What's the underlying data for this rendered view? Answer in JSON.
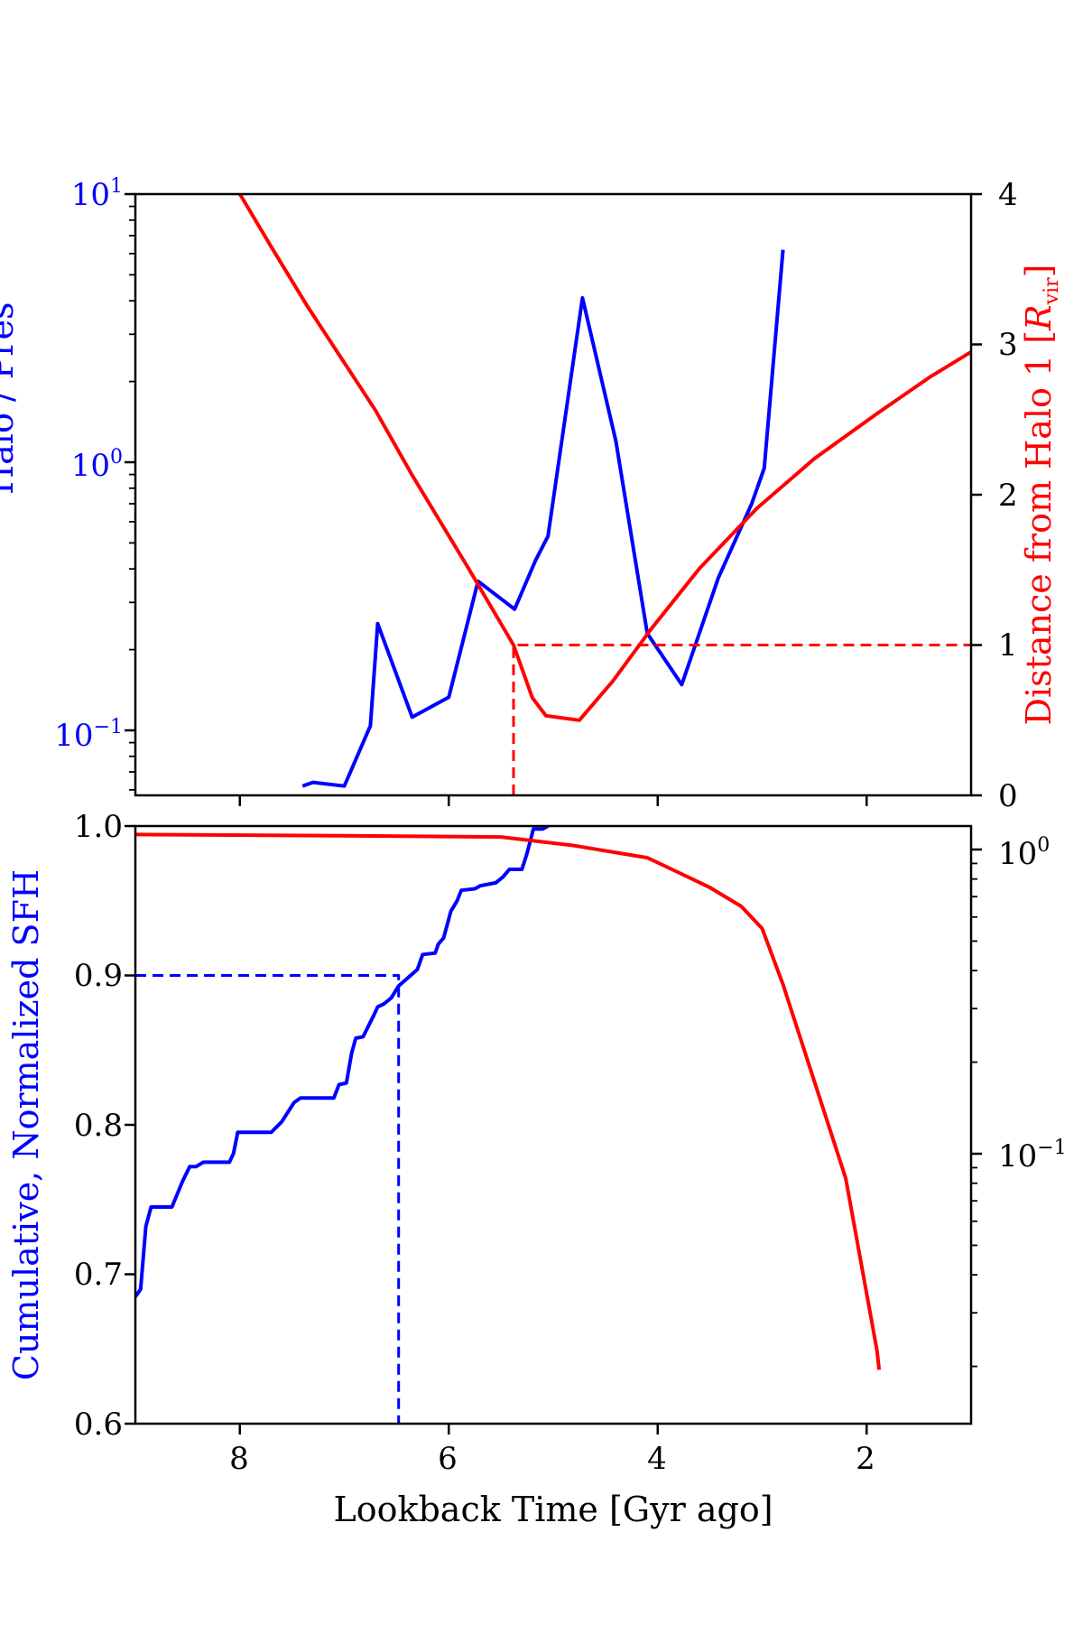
{
  "chart_data": [
    {
      "type": "line",
      "panel": "top",
      "left_axis": {
        "label_visible": "Halo / Pres",
        "scale": "log",
        "ticks": [
          "10",
          "10",
          "10"
        ],
        "tick_exponents": [
          "1",
          "0",
          "−1"
        ],
        "tick_values": [
          10,
          1,
          0.1
        ],
        "color": "#0000ff"
      },
      "right_axis": {
        "label_prefix": "Distance from Halo 1 [",
        "label_var": "R",
        "label_sub": "vir",
        "label_suffix": "]",
        "range": [
          0,
          4
        ],
        "ticks": [
          "0",
          "1",
          "2",
          "3",
          "4"
        ],
        "color": "#ff0000"
      },
      "x": {
        "range": [
          9,
          1
        ],
        "ticks": [
          "8",
          "6",
          "4",
          "2"
        ]
      },
      "series": [
        {
          "color": "#0000ff",
          "axis": "left",
          "points": [
            [
              7.4,
              0.062
            ],
            [
              7.3,
              0.064
            ],
            [
              7.0,
              0.062
            ],
            [
              6.75,
              0.104
            ],
            [
              6.68,
              0.25
            ],
            [
              6.35,
              0.112
            ],
            [
              6.0,
              0.133
            ],
            [
              5.72,
              0.36
            ],
            [
              5.37,
              0.283
            ],
            [
              5.17,
              0.43
            ],
            [
              5.05,
              0.53
            ],
            [
              4.72,
              4.1
            ],
            [
              4.4,
              1.2
            ],
            [
              4.1,
              0.23
            ],
            [
              3.77,
              0.148
            ],
            [
              3.42,
              0.37
            ],
            [
              3.1,
              0.7
            ],
            [
              2.98,
              0.95
            ],
            [
              2.8,
              6.2
            ]
          ]
        },
        {
          "color": "#ff0000",
          "axis": "right",
          "points": [
            [
              8.0,
              4.0
            ],
            [
              7.7,
              3.65
            ],
            [
              7.35,
              3.25
            ],
            [
              6.7,
              2.56
            ],
            [
              6.35,
              2.13
            ],
            [
              5.82,
              1.52
            ],
            [
              5.38,
              1.0
            ],
            [
              5.2,
              0.65
            ],
            [
              5.07,
              0.53
            ],
            [
              4.75,
              0.5
            ],
            [
              4.43,
              0.76
            ],
            [
              4.07,
              1.1
            ],
            [
              3.6,
              1.51
            ],
            [
              3.05,
              1.91
            ],
            [
              2.5,
              2.24
            ],
            [
              1.9,
              2.54
            ],
            [
              1.4,
              2.78
            ],
            [
              1.0,
              2.95
            ]
          ]
        },
        {
          "color": "#ff0000",
          "style": "dashed",
          "axis": "right",
          "points": [
            [
              5.38,
              0.0
            ],
            [
              5.38,
              1.0
            ],
            [
              1.0,
              1.0
            ]
          ]
        }
      ]
    },
    {
      "type": "line",
      "panel": "bottom",
      "left_axis": {
        "label": "Cumulative, Normalized SFH",
        "range": [
          0.6,
          1.0
        ],
        "ticks": [
          "0.6",
          "0.7",
          "0.8",
          "0.9",
          "1.0"
        ],
        "color": "#0000ff"
      },
      "right_axis": {
        "scale": "log",
        "ticks": [
          "10",
          "10"
        ],
        "tick_exponents": [
          "0",
          "−1"
        ],
        "tick_values": [
          1,
          0.1
        ]
      },
      "x": {
        "label": "Lookback Time [Gyr ago]",
        "range": [
          9,
          1
        ],
        "ticks": [
          "8",
          "6",
          "4",
          "2"
        ]
      },
      "series": [
        {
          "color": "#0000ff",
          "axis": "left",
          "points": [
            [
              9.0,
              0.685
            ],
            [
              8.95,
              0.69
            ],
            [
              8.9,
              0.732
            ],
            [
              8.85,
              0.745
            ],
            [
              8.65,
              0.745
            ],
            [
              8.55,
              0.762
            ],
            [
              8.48,
              0.772
            ],
            [
              8.42,
              0.772
            ],
            [
              8.35,
              0.775
            ],
            [
              8.1,
              0.775
            ],
            [
              8.06,
              0.781
            ],
            [
              8.02,
              0.795
            ],
            [
              7.7,
              0.795
            ],
            [
              7.6,
              0.802
            ],
            [
              7.48,
              0.815
            ],
            [
              7.42,
              0.818
            ],
            [
              7.1,
              0.818
            ],
            [
              7.05,
              0.827
            ],
            [
              6.98,
              0.828
            ],
            [
              6.93,
              0.848
            ],
            [
              6.89,
              0.858
            ],
            [
              6.82,
              0.859
            ],
            [
              6.72,
              0.873
            ],
            [
              6.68,
              0.879
            ],
            [
              6.62,
              0.881
            ],
            [
              6.55,
              0.885
            ],
            [
              6.48,
              0.893
            ],
            [
              6.3,
              0.904
            ],
            [
              6.25,
              0.914
            ],
            [
              6.13,
              0.915
            ],
            [
              6.1,
              0.921
            ],
            [
              6.05,
              0.925
            ],
            [
              5.98,
              0.943
            ],
            [
              5.92,
              0.95
            ],
            [
              5.88,
              0.957
            ],
            [
              5.75,
              0.958
            ],
            [
              5.7,
              0.96
            ],
            [
              5.55,
              0.962
            ],
            [
              5.48,
              0.966
            ],
            [
              5.42,
              0.971
            ],
            [
              5.3,
              0.971
            ],
            [
              5.25,
              0.982
            ],
            [
              5.19,
              0.998
            ],
            [
              5.1,
              0.998
            ],
            [
              5.05,
              1.0
            ]
          ]
        },
        {
          "color": "#ff0000",
          "axis": "right",
          "points": [
            [
              9.0,
              1.12
            ],
            [
              7.0,
              1.11
            ],
            [
              5.5,
              1.1
            ],
            [
              4.8,
              1.03
            ],
            [
              4.1,
              0.94
            ],
            [
              3.8,
              0.84
            ],
            [
              3.5,
              0.75
            ],
            [
              3.2,
              0.65
            ],
            [
              3.0,
              0.55
            ],
            [
              2.8,
              0.36
            ],
            [
              2.2,
              0.083
            ],
            [
              1.9,
              0.0225
            ],
            [
              1.88,
              0.0195
            ]
          ]
        },
        {
          "color": "#0000ff",
          "style": "dashed",
          "axis": "left",
          "points": [
            [
              9.0,
              0.9
            ],
            [
              6.48,
              0.9
            ],
            [
              6.48,
              0.6
            ]
          ]
        }
      ]
    }
  ]
}
